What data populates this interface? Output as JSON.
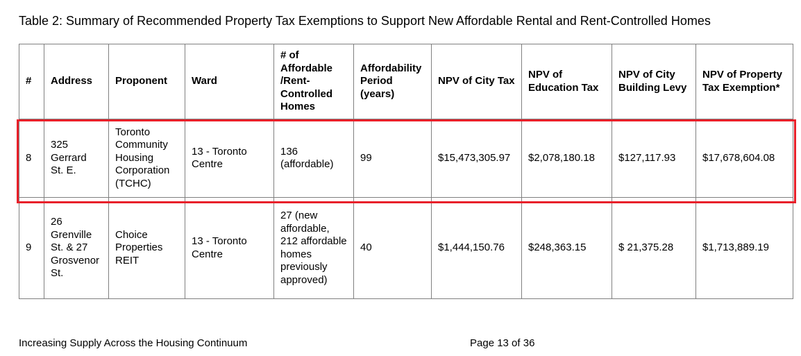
{
  "title": "Table 2: Summary of Recommended Property Tax Exemptions to Support New Affordable Rental and Rent-Controlled Homes",
  "table": {
    "headers": [
      "#",
      "Address",
      "Proponent",
      "Ward",
      "# of Affordable /Rent-Controlled Homes",
      "Affordability Period (years)",
      "NPV of City Tax",
      "NPV of Education Tax",
      "NPV of City Building Levy",
      "NPV of Property Tax Exemption*"
    ],
    "rows": [
      {
        "num": "8",
        "address": "325 Gerrard St. E.",
        "proponent": "Toronto Community Housing Corporation (TCHC)",
        "ward": "13 - Toronto Centre",
        "homes": "136 (affordable)",
        "period": "99",
        "npv_city_tax": "$15,473,305.97",
        "npv_education_tax": "$2,078,180.18",
        "npv_city_building_levy": "$127,117.93",
        "npv_property_tax_exemption": "$17,678,604.08"
      },
      {
        "num": "9",
        "address": "26 Grenville St. & 27 Grosvenor St.",
        "proponent": "Choice Properties REIT",
        "ward": "13 - Toronto Centre",
        "homes": "27 (new affordable, 212 affordable homes previously approved)",
        "period": "40",
        "npv_city_tax": "$1,444,150.76",
        "npv_education_tax": "$248,363.15",
        "npv_city_building_levy": "$ 21,375.28",
        "npv_property_tax_exemption": "$1,713,889.19"
      }
    ]
  },
  "footer": {
    "document_title": "Increasing Supply Across the Housing Continuum",
    "page": "Page 13 of 36"
  },
  "colors": {
    "highlight": "#e8202a",
    "border": "#808080"
  }
}
